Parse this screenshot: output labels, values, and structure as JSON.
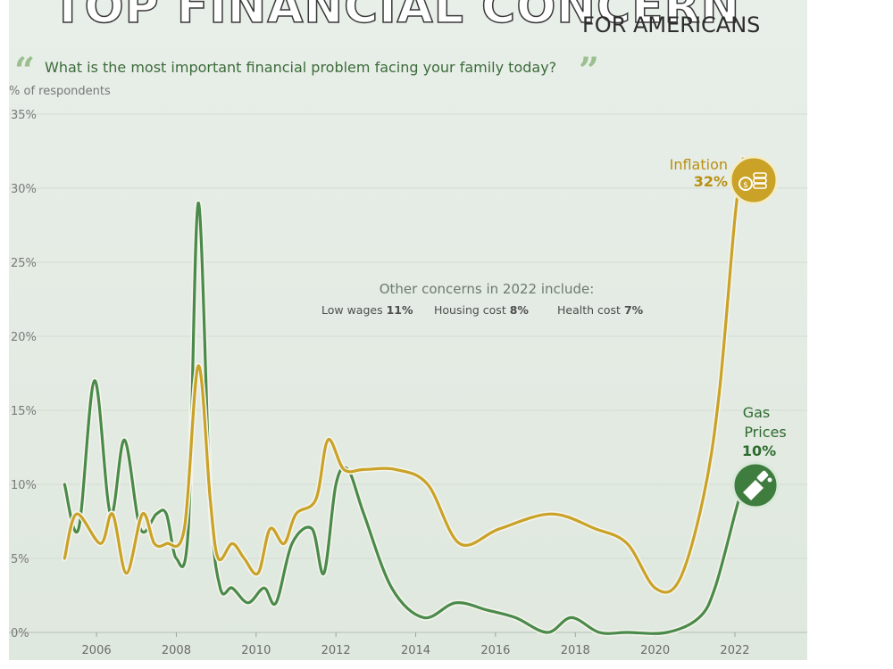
{
  "header": {
    "title": "TOP FINANCIAL CONCERN",
    "subtitle": "FOR AMERICANS",
    "question": "What is the most important financial problem facing your family today?",
    "unit_label": "% of respondents"
  },
  "annotation": {
    "title": "Other concerns in 2022 include:",
    "items": [
      {
        "label": "Low wages",
        "value": "11%"
      },
      {
        "label": "Housing cost",
        "value": "8%"
      },
      {
        "label": "Health cost",
        "value": "7%"
      }
    ]
  },
  "callouts": {
    "inflation": {
      "label": "Inflation",
      "value": "32%",
      "icon": "coins-icon"
    },
    "gas": {
      "label_line1": "Gas",
      "label_line2": "Prices",
      "value": "10%",
      "icon": "fuel-nozzle-icon"
    }
  },
  "chart_data": {
    "type": "line",
    "ylim": [
      0,
      35
    ],
    "xlim": [
      2004.7,
      2023.5
    ],
    "y_ticks": [
      0,
      5,
      10,
      15,
      20,
      25,
      30,
      35
    ],
    "y_tick_labels": [
      "0%",
      "5%",
      "10%",
      "15%",
      "20%",
      "25%",
      "30%",
      "35%"
    ],
    "x_ticks": [
      2006,
      2008,
      2010,
      2012,
      2014,
      2016,
      2018,
      2020,
      2022
    ],
    "x_tick_labels": [
      "2006",
      "2008",
      "2010",
      "2012",
      "2014",
      "2016",
      "2018",
      "2020",
      "2022"
    ],
    "grid": true,
    "series": [
      {
        "name": "Inflation",
        "color": "#c9a227",
        "x": [
          2005.2,
          2005.5,
          2006.1,
          2006.4,
          2006.75,
          2007.15,
          2007.45,
          2007.75,
          2008.2,
          2008.55,
          2008.85,
          2009.05,
          2009.4,
          2009.7,
          2010.05,
          2010.35,
          2010.7,
          2011.0,
          2011.5,
          2011.8,
          2012.2,
          2012.7,
          2013.5,
          2014.3,
          2015.1,
          2016.1,
          2017.4,
          2018.5,
          2019.3,
          2020.0,
          2020.6,
          2021.2,
          2021.6,
          2022.0,
          2022.2
        ],
        "y": [
          5,
          8,
          6,
          8,
          4,
          8,
          6,
          6,
          7,
          18,
          9,
          5,
          6,
          5,
          4,
          7,
          6,
          8,
          9,
          13,
          11,
          11,
          11,
          10,
          6,
          7,
          8,
          7,
          6,
          3,
          3.5,
          9,
          16,
          28,
          32
        ]
      },
      {
        "name": "Gas Prices",
        "color": "#4a8a4a",
        "x": [
          2005.2,
          2005.55,
          2005.95,
          2006.35,
          2006.7,
          2007.1,
          2007.5,
          2007.75,
          2008.0,
          2008.3,
          2008.55,
          2008.85,
          2009.1,
          2009.4,
          2009.8,
          2010.2,
          2010.5,
          2010.9,
          2011.4,
          2011.7,
          2012.0,
          2012.3,
          2012.7,
          2013.4,
          2014.2,
          2015.0,
          2015.8,
          2016.5,
          2017.3,
          2017.9,
          2018.6,
          2019.3,
          2020.3,
          2021.1,
          2021.5,
          2022.0,
          2022.2
        ],
        "y": [
          10,
          7,
          17,
          8,
          13,
          7,
          8,
          8,
          5,
          7,
          29,
          9,
          3,
          3,
          2,
          3,
          2,
          6,
          7,
          4,
          10,
          11,
          8,
          3,
          1,
          2,
          1.5,
          1,
          0,
          1,
          0,
          0,
          0,
          1,
          3,
          8,
          10
        ]
      }
    ]
  }
}
